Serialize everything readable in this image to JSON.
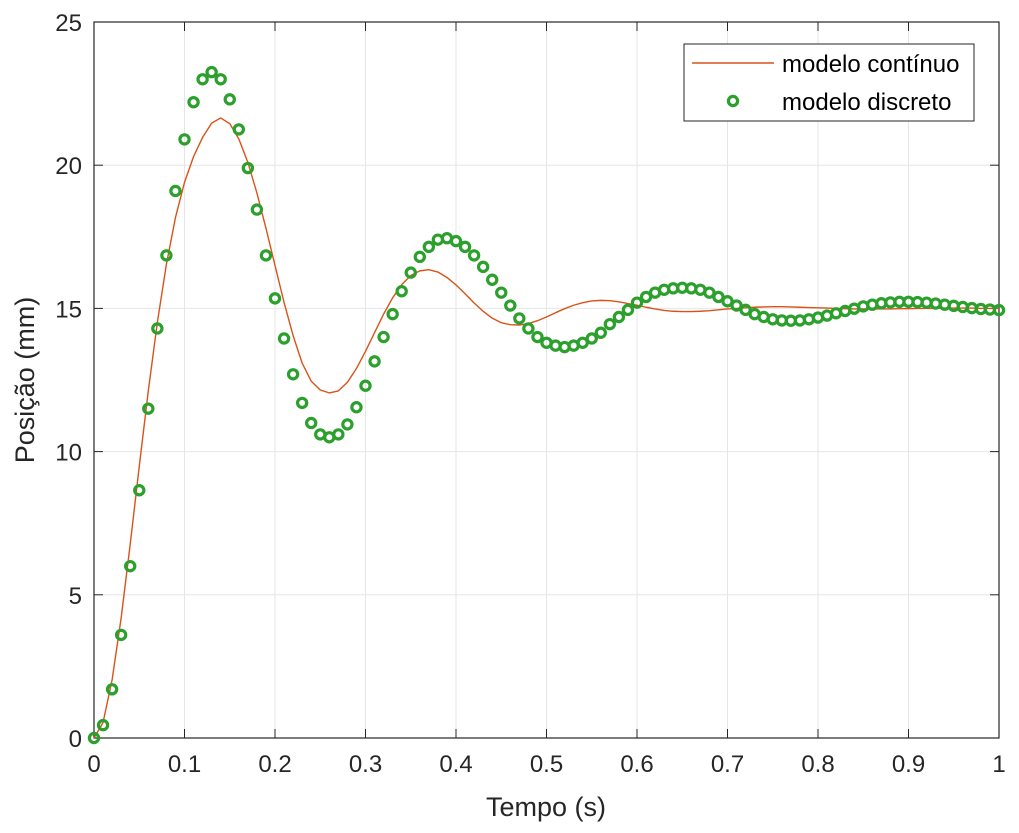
{
  "chart_data": {
    "type": "line",
    "xlabel": "Tempo (s)",
    "ylabel": "Posição (mm)",
    "xlim": [
      0,
      1
    ],
    "ylim": [
      0,
      25
    ],
    "xticks": [
      "0",
      "0.1",
      "0.2",
      "0.3",
      "0.4",
      "0.5",
      "0.6",
      "0.7",
      "0.8",
      "0.9",
      "1"
    ],
    "yticks": [
      "0",
      "5",
      "10",
      "15",
      "20",
      "25"
    ],
    "grid": true,
    "legend_position": "top-right",
    "series": [
      {
        "name": "modelo contínuo",
        "style": "line",
        "color": "#d95319",
        "x": [
          0,
          0.01,
          0.02,
          0.03,
          0.04,
          0.05,
          0.06,
          0.07,
          0.08,
          0.09,
          0.1,
          0.11,
          0.12,
          0.13,
          0.14,
          0.15,
          0.16,
          0.17,
          0.18,
          0.19,
          0.2,
          0.21,
          0.22,
          0.23,
          0.24,
          0.25,
          0.26,
          0.27,
          0.28,
          0.29,
          0.3,
          0.31,
          0.32,
          0.33,
          0.34,
          0.35,
          0.36,
          0.37,
          0.38,
          0.39,
          0.4,
          0.41,
          0.42,
          0.43,
          0.44,
          0.45,
          0.46,
          0.47,
          0.48,
          0.49,
          0.5,
          0.51,
          0.52,
          0.53,
          0.54,
          0.55,
          0.56,
          0.57,
          0.58,
          0.59,
          0.6,
          0.61,
          0.62,
          0.63,
          0.64,
          0.65,
          0.66,
          0.67,
          0.68,
          0.69,
          0.7,
          0.71,
          0.72,
          0.73,
          0.74,
          0.75,
          0.76,
          0.77,
          0.78,
          0.79,
          0.8,
          0.81,
          0.82,
          0.83,
          0.84,
          0.85,
          0.86,
          0.87,
          0.88,
          0.89,
          0.9,
          0.91,
          0.92,
          0.93,
          0.94,
          0.95,
          0.96,
          0.97,
          0.98,
          0.99,
          1.0
        ],
        "y": [
          0.0,
          0.54,
          2.03,
          4.19,
          6.76,
          9.48,
          12.12,
          14.51,
          16.54,
          18.17,
          19.4,
          20.3,
          20.97,
          21.47,
          21.65,
          21.45,
          20.92,
          20.1,
          19.03,
          17.8,
          16.5,
          15.21,
          14.05,
          13.09,
          12.46,
          12.15,
          12.05,
          12.12,
          12.42,
          12.9,
          13.5,
          14.15,
          14.8,
          15.37,
          15.83,
          16.15,
          16.31,
          16.35,
          16.27,
          16.08,
          15.82,
          15.51,
          15.19,
          14.9,
          14.66,
          14.5,
          14.43,
          14.42,
          14.47,
          14.57,
          14.7,
          14.85,
          14.99,
          15.11,
          15.2,
          15.26,
          15.28,
          15.27,
          15.23,
          15.17,
          15.11,
          15.04,
          14.98,
          14.93,
          14.9,
          14.89,
          14.89,
          14.9,
          14.92,
          14.95,
          14.98,
          15.0,
          15.02,
          15.04,
          15.05,
          15.06,
          15.06,
          15.05,
          15.04,
          15.03,
          15.02,
          15.01,
          15.0,
          14.99,
          14.98,
          14.98,
          14.98,
          14.98,
          14.98,
          14.99,
          14.99,
          15.0,
          15.0,
          15.0,
          15.01,
          15.01,
          15.01,
          15.01,
          15.0,
          15.0,
          15.0
        ]
      },
      {
        "name": "modelo discreto",
        "style": "marker-circle",
        "color": "#2ca02c",
        "x": [
          0,
          0.01,
          0.02,
          0.03,
          0.04,
          0.05,
          0.06,
          0.07,
          0.08,
          0.09,
          0.1,
          0.11,
          0.12,
          0.13,
          0.14,
          0.15,
          0.16,
          0.17,
          0.18,
          0.19,
          0.2,
          0.21,
          0.22,
          0.23,
          0.24,
          0.25,
          0.26,
          0.27,
          0.28,
          0.29,
          0.3,
          0.31,
          0.32,
          0.33,
          0.34,
          0.35,
          0.36,
          0.37,
          0.38,
          0.39,
          0.4,
          0.41,
          0.42,
          0.43,
          0.44,
          0.45,
          0.46,
          0.47,
          0.48,
          0.49,
          0.5,
          0.51,
          0.52,
          0.53,
          0.54,
          0.55,
          0.56,
          0.57,
          0.58,
          0.59,
          0.6,
          0.61,
          0.62,
          0.63,
          0.64,
          0.65,
          0.66,
          0.67,
          0.68,
          0.69,
          0.7,
          0.71,
          0.72,
          0.73,
          0.74,
          0.75,
          0.76,
          0.77,
          0.78,
          0.79,
          0.8,
          0.81,
          0.82,
          0.83,
          0.84,
          0.85,
          0.86,
          0.87,
          0.88,
          0.89,
          0.9,
          0.91,
          0.92,
          0.93,
          0.94,
          0.95,
          0.96,
          0.97,
          0.98,
          0.99,
          1.0
        ],
        "y": [
          0.0,
          0.45,
          1.7,
          3.6,
          6.0,
          8.65,
          11.5,
          14.3,
          16.85,
          19.1,
          20.9,
          22.2,
          23.0,
          23.25,
          23.0,
          22.3,
          21.25,
          19.9,
          18.45,
          16.85,
          15.35,
          13.95,
          12.7,
          11.7,
          11.0,
          10.6,
          10.5,
          10.6,
          10.95,
          11.55,
          12.3,
          13.15,
          14.0,
          14.8,
          15.6,
          16.25,
          16.8,
          17.15,
          17.4,
          17.45,
          17.35,
          17.15,
          16.85,
          16.45,
          16.0,
          15.55,
          15.1,
          14.65,
          14.3,
          14.0,
          13.8,
          13.7,
          13.65,
          13.7,
          13.8,
          13.95,
          14.15,
          14.45,
          14.7,
          14.95,
          15.2,
          15.4,
          15.55,
          15.65,
          15.7,
          15.72,
          15.7,
          15.65,
          15.55,
          15.4,
          15.25,
          15.1,
          14.95,
          14.8,
          14.7,
          14.62,
          14.58,
          14.57,
          14.58,
          14.62,
          14.68,
          14.75,
          14.83,
          14.91,
          14.99,
          15.07,
          15.13,
          15.18,
          15.21,
          15.23,
          15.23,
          15.22,
          15.2,
          15.17,
          15.13,
          15.09,
          15.05,
          15.01,
          14.98,
          14.96,
          14.94
        ]
      }
    ]
  }
}
